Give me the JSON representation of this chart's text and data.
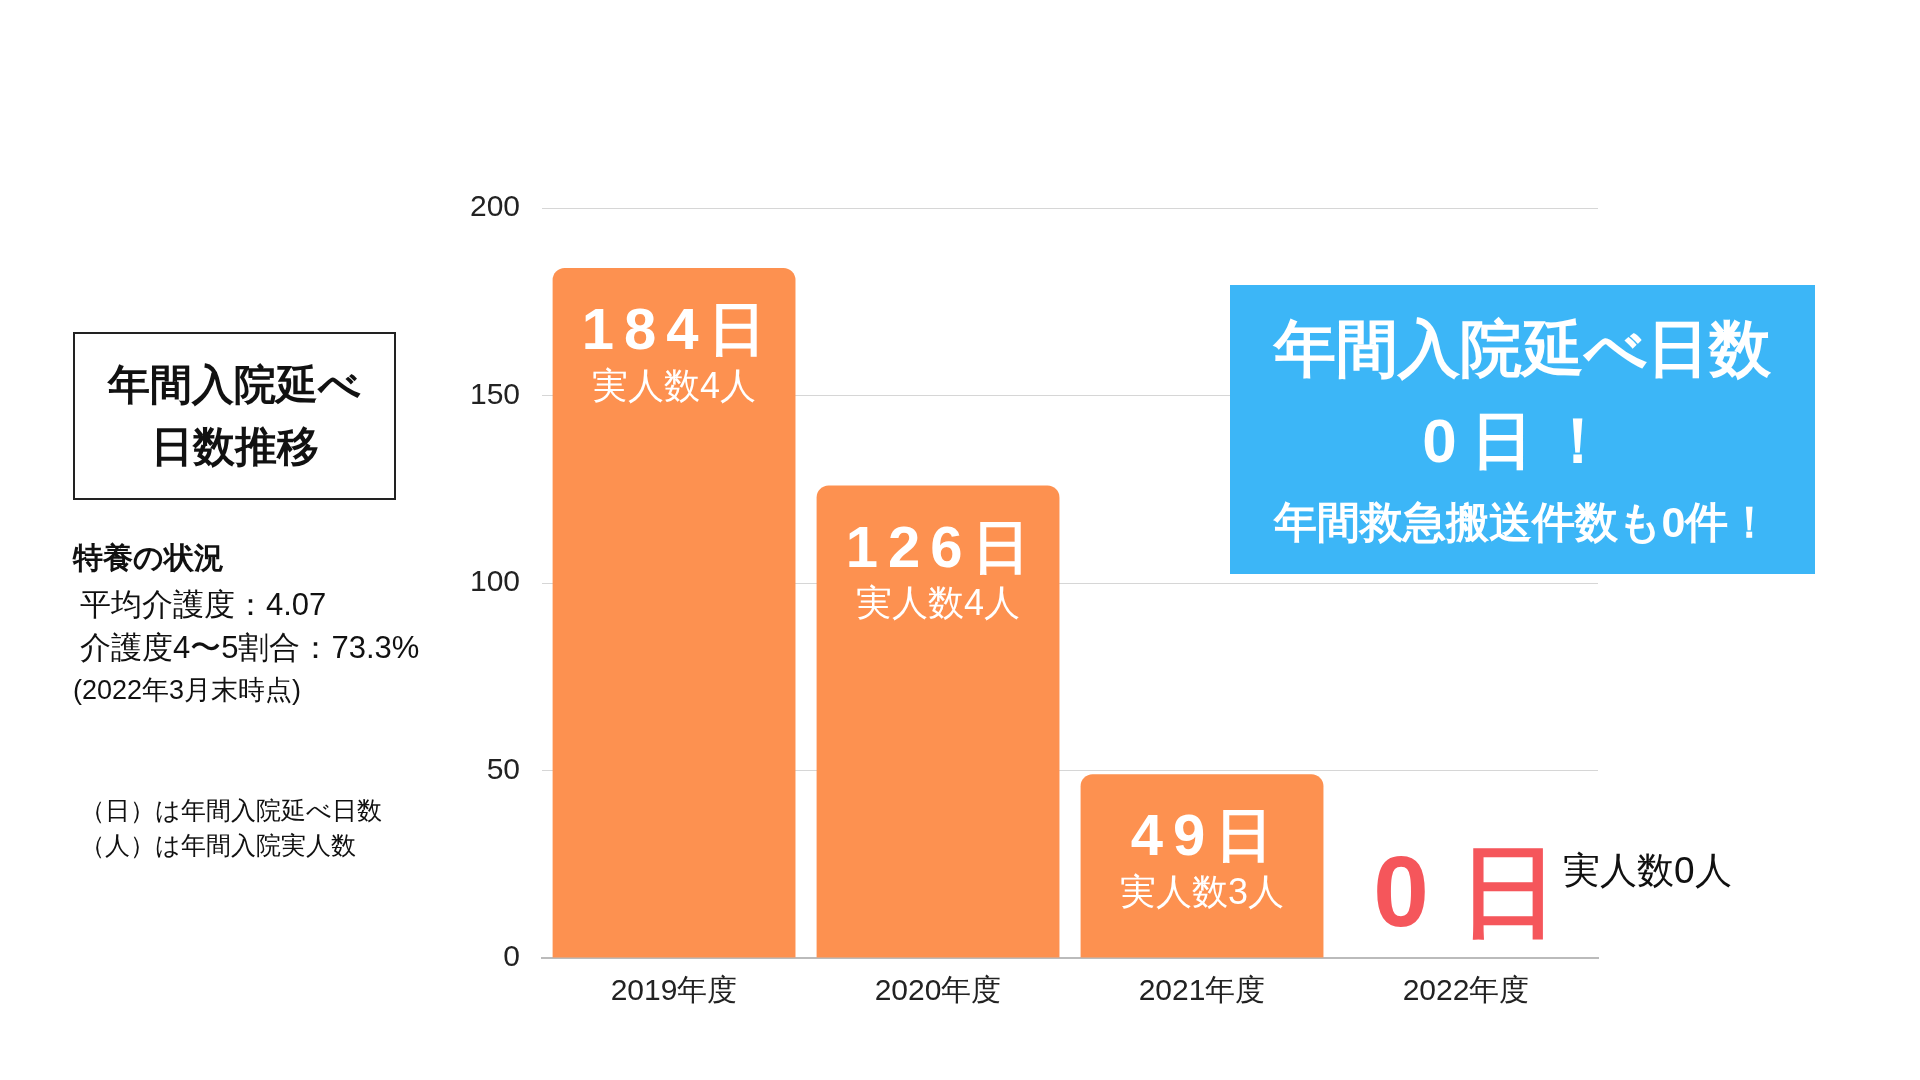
{
  "chart_data": {
    "type": "bar",
    "title": "年間入院延べ日数推移",
    "categories": [
      "2019年度",
      "2020年度",
      "2021年度",
      "2022年度"
    ],
    "values": [
      184,
      126,
      49,
      0
    ],
    "color": "#fd9150",
    "value_labels": [
      "184日",
      "126日",
      "49日",
      "0日"
    ],
    "ylim": [
      0,
      200
    ],
    "yticks": [
      0,
      50,
      100,
      150,
      200
    ],
    "grid": "y",
    "legend": false,
    "annotations": [
      "年間入院延べ日数",
      "0日！",
      "年間救急搬送件数も0件！",
      "特養の状況",
      "平均介護度：4.07",
      "介護度4〜5割合：73.3%",
      "(2022年3月末時点)",
      "（日）は年間入院延べ日数",
      "（人）は年間入院実人数",
      {
        "text": "実人数4人",
        "x": "2019年度",
        "y": 184
      },
      {
        "text": "実人数4人",
        "x": "2020年度",
        "y": 126
      },
      {
        "text": "実人数3人",
        "x": "2021年度",
        "y": 49
      },
      "実人数0人"
    ]
  }
}
